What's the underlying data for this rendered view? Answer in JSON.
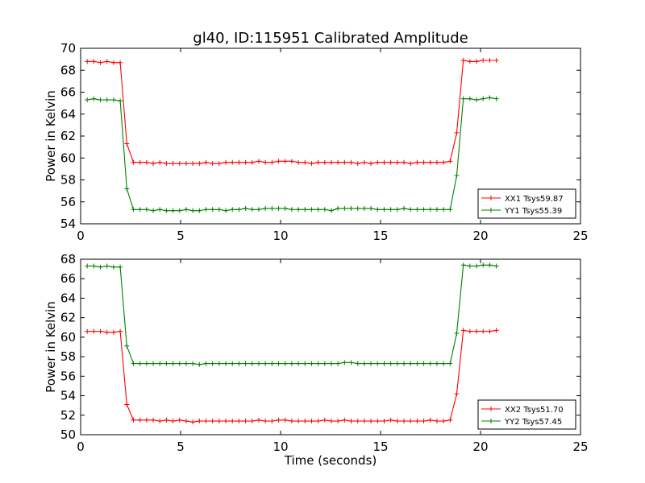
{
  "title": "gl40, ID:115951 Calibrated Amplitude",
  "chart_data": [
    {
      "type": "line",
      "ylabel": "Power in Kelvin",
      "xlabel": "",
      "xlim": [
        0,
        25
      ],
      "ylim": [
        54,
        70
      ],
      "xticks": [
        "0",
        "5",
        "10",
        "15",
        "20",
        "25"
      ],
      "yticks": [
        "54",
        "56",
        "58",
        "60",
        "62",
        "64",
        "66",
        "68",
        "70"
      ],
      "legend_position": "lower-right",
      "x": [
        0.33,
        0.66,
        0.99,
        1.32,
        1.65,
        1.98,
        2.31,
        2.64,
        2.97,
        3.3,
        3.63,
        3.96,
        4.29,
        4.62,
        4.95,
        5.28,
        5.61,
        5.94,
        6.27,
        6.6,
        6.93,
        7.26,
        7.59,
        7.92,
        8.25,
        8.58,
        8.91,
        9.24,
        9.57,
        9.9,
        10.23,
        10.56,
        10.89,
        11.22,
        11.55,
        11.88,
        12.21,
        12.54,
        12.87,
        13.2,
        13.53,
        13.86,
        14.19,
        14.52,
        14.85,
        15.18,
        15.51,
        15.84,
        16.17,
        16.5,
        16.83,
        17.16,
        17.49,
        17.82,
        18.15,
        18.48,
        18.81,
        19.14,
        19.47,
        19.8,
        20.13,
        20.46,
        20.79
      ],
      "series": [
        {
          "name": "XX1 Tsys59.87",
          "color": "#ff0000",
          "values": [
            68.8,
            68.8,
            68.7,
            68.8,
            68.7,
            68.7,
            61.3,
            59.6,
            59.6,
            59.6,
            59.5,
            59.6,
            59.5,
            59.5,
            59.5,
            59.5,
            59.5,
            59.5,
            59.6,
            59.5,
            59.5,
            59.6,
            59.6,
            59.6,
            59.6,
            59.6,
            59.7,
            59.6,
            59.6,
            59.7,
            59.7,
            59.7,
            59.6,
            59.6,
            59.5,
            59.6,
            59.6,
            59.6,
            59.6,
            59.6,
            59.6,
            59.5,
            59.6,
            59.5,
            59.6,
            59.6,
            59.6,
            59.6,
            59.6,
            59.5,
            59.6,
            59.6,
            59.6,
            59.6,
            59.6,
            59.7,
            62.3,
            68.9,
            68.8,
            68.8,
            68.9,
            68.9,
            68.9
          ]
        },
        {
          "name": "YY1 Tsys55.39",
          "color": "#008000",
          "values": [
            65.3,
            65.4,
            65.3,
            65.3,
            65.3,
            65.2,
            57.2,
            55.3,
            55.3,
            55.3,
            55.2,
            55.3,
            55.2,
            55.2,
            55.2,
            55.3,
            55.2,
            55.2,
            55.3,
            55.3,
            55.3,
            55.2,
            55.3,
            55.3,
            55.4,
            55.3,
            55.3,
            55.4,
            55.4,
            55.4,
            55.4,
            55.3,
            55.3,
            55.3,
            55.3,
            55.3,
            55.3,
            55.2,
            55.4,
            55.4,
            55.4,
            55.4,
            55.4,
            55.4,
            55.3,
            55.3,
            55.3,
            55.3,
            55.4,
            55.3,
            55.3,
            55.3,
            55.3,
            55.3,
            55.3,
            55.3,
            58.4,
            65.4,
            65.4,
            65.3,
            65.4,
            65.5,
            65.4
          ]
        }
      ]
    },
    {
      "type": "line",
      "ylabel": "Power in Kelvin",
      "xlabel": "Time (seconds)",
      "xlim": [
        0,
        25
      ],
      "ylim": [
        50,
        68
      ],
      "xticks": [
        "0",
        "5",
        "10",
        "15",
        "20",
        "25"
      ],
      "yticks": [
        "50",
        "52",
        "54",
        "56",
        "58",
        "60",
        "62",
        "64",
        "66",
        "68"
      ],
      "legend_position": "lower-right",
      "x": [
        0.33,
        0.66,
        0.99,
        1.32,
        1.65,
        1.98,
        2.31,
        2.64,
        2.97,
        3.3,
        3.63,
        3.96,
        4.29,
        4.62,
        4.95,
        5.28,
        5.61,
        5.94,
        6.27,
        6.6,
        6.93,
        7.26,
        7.59,
        7.92,
        8.25,
        8.58,
        8.91,
        9.24,
        9.57,
        9.9,
        10.23,
        10.56,
        10.89,
        11.22,
        11.55,
        11.88,
        12.21,
        12.54,
        12.87,
        13.2,
        13.53,
        13.86,
        14.19,
        14.52,
        14.85,
        15.18,
        15.51,
        15.84,
        16.17,
        16.5,
        16.83,
        17.16,
        17.49,
        17.82,
        18.15,
        18.48,
        18.81,
        19.14,
        19.47,
        19.8,
        20.13,
        20.46,
        20.79
      ],
      "series": [
        {
          "name": "XX2 Tsys51.70",
          "color": "#ff0000",
          "values": [
            60.6,
            60.6,
            60.6,
            60.5,
            60.5,
            60.6,
            53.1,
            51.5,
            51.5,
            51.5,
            51.5,
            51.4,
            51.5,
            51.4,
            51.5,
            51.4,
            51.3,
            51.4,
            51.4,
            51.4,
            51.4,
            51.4,
            51.4,
            51.4,
            51.4,
            51.4,
            51.5,
            51.4,
            51.4,
            51.5,
            51.5,
            51.4,
            51.4,
            51.4,
            51.4,
            51.4,
            51.5,
            51.4,
            51.4,
            51.5,
            51.4,
            51.4,
            51.4,
            51.4,
            51.4,
            51.4,
            51.5,
            51.4,
            51.4,
            51.4,
            51.4,
            51.4,
            51.5,
            51.4,
            51.4,
            51.5,
            54.2,
            60.7,
            60.6,
            60.6,
            60.6,
            60.6,
            60.7
          ]
        },
        {
          "name": "YY2 Tsys57.45",
          "color": "#008000",
          "values": [
            67.3,
            67.3,
            67.2,
            67.3,
            67.2,
            67.2,
            59.1,
            57.3,
            57.3,
            57.3,
            57.3,
            57.3,
            57.3,
            57.3,
            57.3,
            57.3,
            57.3,
            57.2,
            57.3,
            57.3,
            57.3,
            57.3,
            57.3,
            57.3,
            57.3,
            57.3,
            57.3,
            57.3,
            57.3,
            57.3,
            57.3,
            57.3,
            57.3,
            57.3,
            57.3,
            57.3,
            57.3,
            57.3,
            57.3,
            57.4,
            57.4,
            57.3,
            57.3,
            57.3,
            57.3,
            57.3,
            57.3,
            57.3,
            57.3,
            57.3,
            57.3,
            57.3,
            57.3,
            57.3,
            57.3,
            57.3,
            60.4,
            67.4,
            67.3,
            67.3,
            67.4,
            67.4,
            67.3
          ]
        }
      ]
    }
  ]
}
